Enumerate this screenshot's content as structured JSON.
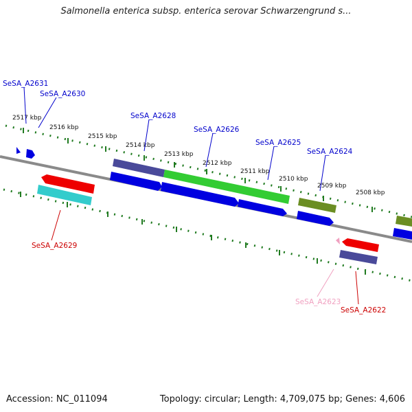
{
  "title": "Salmonella enterica subsp. enterica serovar Schwarzengrund s...",
  "footer": {
    "accession": "Accession: NC_011094",
    "summary": "Topology: circular; Length: 4,709,075 bp; Genes: 4,606"
  },
  "colors": {
    "backbone": "#8a8a8a",
    "ticks": "#1f7a1f",
    "forward_label": "#0000cc",
    "reverse_label": "#cc0000",
    "pink_label": "#f0a0c0"
  },
  "ruler_labels": [
    "2517 kbp",
    "2516 kbp",
    "2515 kbp",
    "2514 kbp",
    "2513 kbp",
    "2512 kbp",
    "2511 kbp",
    "2510 kbp",
    "2509 kbp",
    "2508 kbp"
  ],
  "genes": [
    {
      "label": "SeSA_A2631",
      "strand": "forward",
      "color": "#0000cc"
    },
    {
      "label": "SeSA_A2630",
      "strand": "forward",
      "color": "#0000cc"
    },
    {
      "label": "SeSA_A2628",
      "strand": "forward",
      "color": "#0000cc"
    },
    {
      "label": "SeSA_A2626",
      "strand": "forward",
      "color": "#0000cc"
    },
    {
      "label": "SeSA_A2625",
      "strand": "forward",
      "color": "#0000cc"
    },
    {
      "label": "SeSA_A2624",
      "strand": "forward",
      "color": "#0000cc"
    },
    {
      "label": "SeSA_A2629",
      "strand": "reverse",
      "color": "#cc0000"
    },
    {
      "label": "SeSA_A2623",
      "strand": "reverse",
      "color": "#f0a0c0"
    },
    {
      "label": "SeSA_A2622",
      "strand": "reverse",
      "color": "#cc0000"
    }
  ]
}
